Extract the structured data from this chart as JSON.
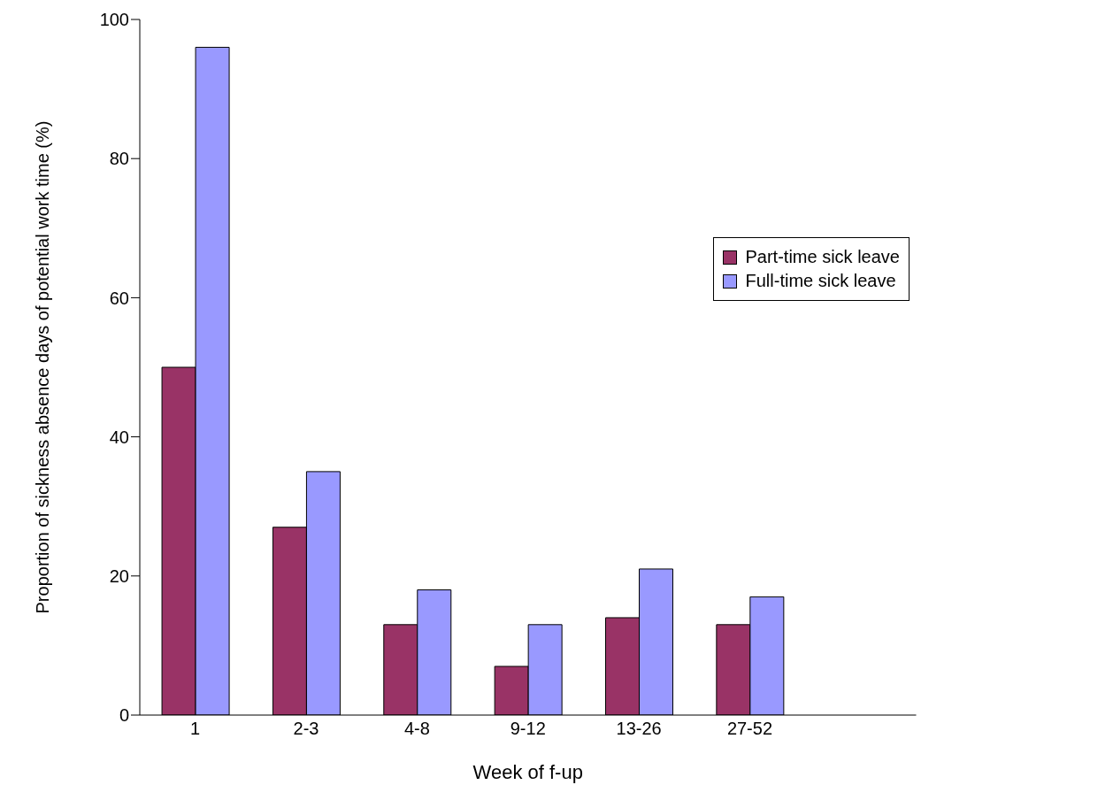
{
  "chart_data": {
    "type": "bar",
    "xlabel": "Week of f-up",
    "ylabel": "Proportion of sickness absence days of potential work time (%)",
    "categories": [
      "1",
      "2-3",
      "4-8",
      "9-12",
      "13-26",
      "27-52",
      null
    ],
    "series": [
      {
        "name": "Part-time sick leave",
        "color": "#993366",
        "values": [
          50,
          27,
          13,
          7,
          14,
          13,
          null
        ]
      },
      {
        "name": "Full-time sick leave",
        "color": "#9999ff",
        "values": [
          96,
          35,
          18,
          13,
          21,
          17,
          null
        ]
      }
    ],
    "ylim": [
      0,
      100
    ],
    "yticks": [
      0,
      20,
      40,
      60,
      80,
      100
    ],
    "grid": false,
    "legend": "right"
  }
}
